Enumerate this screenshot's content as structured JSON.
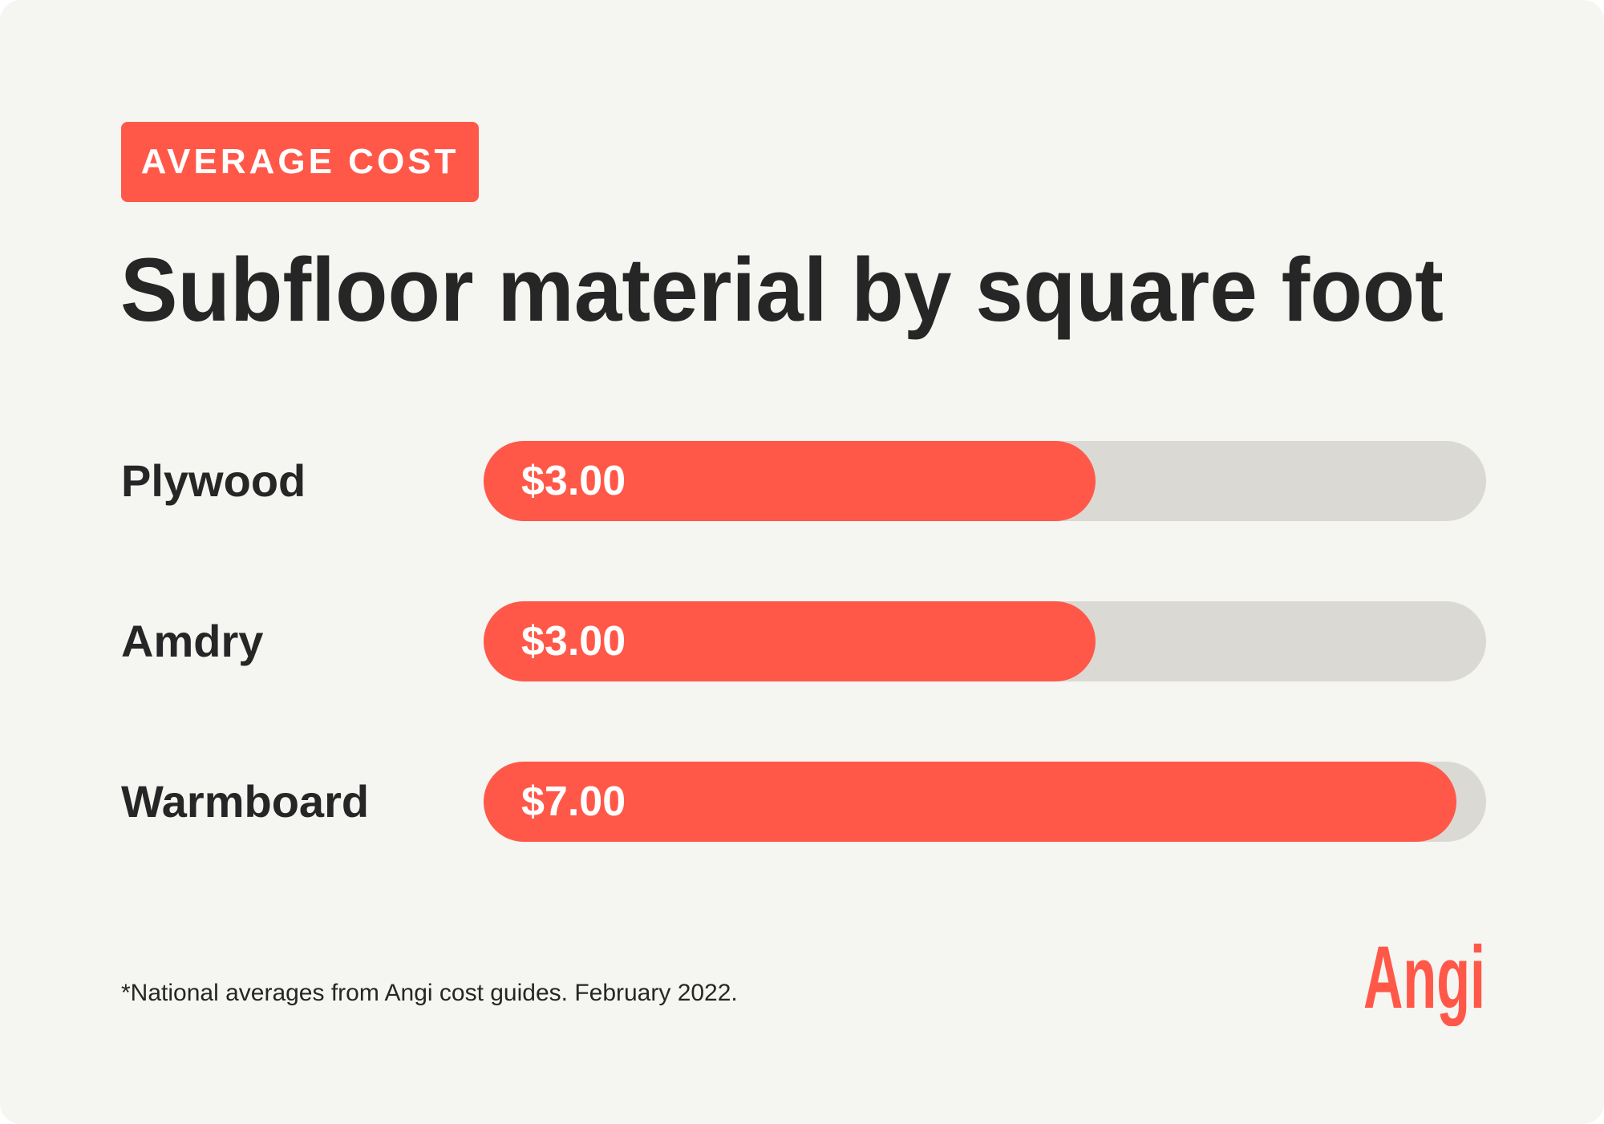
{
  "badge": "AVERAGE COST",
  "brand_color": "#ff5849",
  "logo_text": "Angi",
  "chart_data": {
    "type": "bar",
    "orientation": "horizontal",
    "title": "Subfloor material by square foot",
    "categories": [
      "Plywood",
      "Amdry",
      "Warmboard"
    ],
    "values": [
      3.0,
      3.0,
      7.0
    ],
    "value_labels": [
      "$3.00",
      "$3.00",
      "$7.00"
    ],
    "fill_fraction": [
      0.61,
      0.61,
      0.97
    ],
    "unit": "USD per square foot",
    "footnote": "*National averages from Angi cost guides. February 2022."
  }
}
